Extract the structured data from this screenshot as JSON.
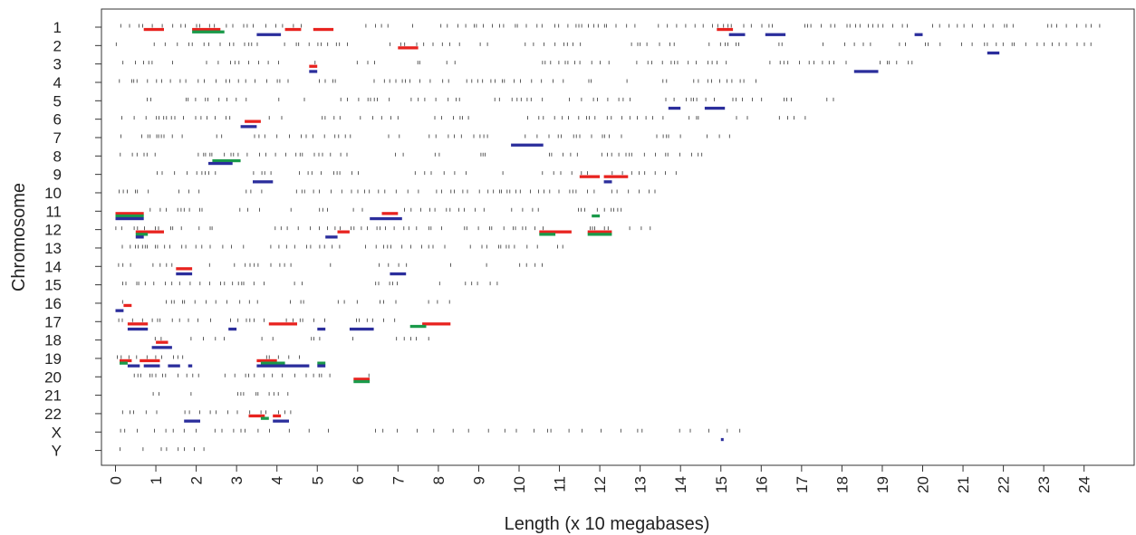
{
  "chart_data": {
    "type": "scatter",
    "title": "",
    "xlabel": "Length (x 10 megabases)",
    "ylabel": "Chromosome",
    "xlim": [
      -0.4,
      25.6
    ],
    "x_ticks": [
      0,
      1,
      2,
      3,
      4,
      5,
      6,
      7,
      8,
      9,
      10,
      11,
      12,
      13,
      14,
      15,
      16,
      17,
      18,
      19,
      20,
      21,
      22,
      23,
      24
    ],
    "chromosomes": [
      "1",
      "2",
      "3",
      "4",
      "5",
      "6",
      "7",
      "8",
      "9",
      "10",
      "11",
      "12",
      "13",
      "14",
      "15",
      "16",
      "17",
      "18",
      "19",
      "20",
      "21",
      "22",
      "X",
      "Y"
    ],
    "chromosome_lengths": [
      24.5,
      24.3,
      19.8,
      19.1,
      18.1,
      17.1,
      15.9,
      14.6,
      14.1,
      13.5,
      13.4,
      13.3,
      11.4,
      10.6,
      10.0,
      9.0,
      8.1,
      7.8,
      5.9,
      6.3,
      4.7,
      5.0,
      15.5,
      2.6
    ],
    "colors": {
      "ticks": "#333333",
      "red": "#e8231f",
      "green": "#1a9a4a",
      "blue": "#2b2e9c"
    },
    "segments": [
      {
        "chr": "1",
        "start": 0.7,
        "end": 1.2,
        "color": "red"
      },
      {
        "chr": "1",
        "start": 1.9,
        "end": 2.6,
        "color": "red"
      },
      {
        "chr": "1",
        "start": 1.9,
        "end": 2.7,
        "color": "green"
      },
      {
        "chr": "1",
        "start": 3.5,
        "end": 4.1,
        "color": "blue"
      },
      {
        "chr": "1",
        "start": 4.2,
        "end": 4.6,
        "color": "red"
      },
      {
        "chr": "1",
        "start": 4.9,
        "end": 5.4,
        "color": "red"
      },
      {
        "chr": "1",
        "start": 14.9,
        "end": 15.3,
        "color": "red"
      },
      {
        "chr": "1",
        "start": 15.2,
        "end": 15.6,
        "color": "blue"
      },
      {
        "chr": "1",
        "start": 16.1,
        "end": 16.6,
        "color": "blue"
      },
      {
        "chr": "1",
        "start": 19.8,
        "end": 20.0,
        "color": "blue"
      },
      {
        "chr": "2",
        "start": 7.0,
        "end": 7.5,
        "color": "red"
      },
      {
        "chr": "2",
        "start": 21.6,
        "end": 21.9,
        "color": "blue"
      },
      {
        "chr": "3",
        "start": 4.8,
        "end": 5.0,
        "color": "red"
      },
      {
        "chr": "3",
        "start": 4.8,
        "end": 5.0,
        "color": "blue"
      },
      {
        "chr": "3",
        "start": 18.3,
        "end": 18.9,
        "color": "blue"
      },
      {
        "chr": "5",
        "start": 13.7,
        "end": 14.0,
        "color": "blue"
      },
      {
        "chr": "5",
        "start": 14.6,
        "end": 15.1,
        "color": "blue"
      },
      {
        "chr": "6",
        "start": 3.2,
        "end": 3.6,
        "color": "red"
      },
      {
        "chr": "6",
        "start": 3.1,
        "end": 3.5,
        "color": "blue"
      },
      {
        "chr": "7",
        "start": 9.8,
        "end": 10.6,
        "color": "blue"
      },
      {
        "chr": "8",
        "start": 2.4,
        "end": 3.1,
        "color": "green"
      },
      {
        "chr": "8",
        "start": 2.3,
        "end": 2.9,
        "color": "blue"
      },
      {
        "chr": "9",
        "start": 11.5,
        "end": 12.0,
        "color": "red"
      },
      {
        "chr": "9",
        "start": 12.1,
        "end": 12.7,
        "color": "red"
      },
      {
        "chr": "9",
        "start": 3.4,
        "end": 3.9,
        "color": "blue"
      },
      {
        "chr": "9",
        "start": 12.1,
        "end": 12.3,
        "color": "blue"
      },
      {
        "chr": "11",
        "start": 0.0,
        "end": 0.7,
        "color": "red"
      },
      {
        "chr": "11",
        "start": 0.0,
        "end": 0.7,
        "color": "green"
      },
      {
        "chr": "11",
        "start": 0.0,
        "end": 0.7,
        "color": "blue"
      },
      {
        "chr": "11",
        "start": 6.6,
        "end": 7.0,
        "color": "red"
      },
      {
        "chr": "11",
        "start": 6.3,
        "end": 7.1,
        "color": "blue"
      },
      {
        "chr": "11",
        "start": 11.8,
        "end": 12.0,
        "color": "green"
      },
      {
        "chr": "12",
        "start": 0.5,
        "end": 1.2,
        "color": "red"
      },
      {
        "chr": "12",
        "start": 0.5,
        "end": 0.8,
        "color": "green"
      },
      {
        "chr": "12",
        "start": 0.5,
        "end": 0.7,
        "color": "blue"
      },
      {
        "chr": "12",
        "start": 5.5,
        "end": 5.8,
        "color": "red"
      },
      {
        "chr": "12",
        "start": 5.2,
        "end": 5.5,
        "color": "blue"
      },
      {
        "chr": "12",
        "start": 10.5,
        "end": 11.0,
        "color": "red"
      },
      {
        "chr": "12",
        "start": 10.5,
        "end": 10.9,
        "color": "green"
      },
      {
        "chr": "12",
        "start": 11.0,
        "end": 11.3,
        "color": "red"
      },
      {
        "chr": "12",
        "start": 11.7,
        "end": 12.3,
        "color": "red"
      },
      {
        "chr": "12",
        "start": 11.7,
        "end": 12.3,
        "color": "green"
      },
      {
        "chr": "14",
        "start": 1.5,
        "end": 1.9,
        "color": "red"
      },
      {
        "chr": "14",
        "start": 1.5,
        "end": 1.9,
        "color": "blue"
      },
      {
        "chr": "14",
        "start": 6.8,
        "end": 7.2,
        "color": "blue"
      },
      {
        "chr": "16",
        "start": 0.2,
        "end": 0.4,
        "color": "red"
      },
      {
        "chr": "16",
        "start": 0.0,
        "end": 0.2,
        "color": "blue"
      },
      {
        "chr": "17",
        "start": 0.3,
        "end": 0.8,
        "color": "red"
      },
      {
        "chr": "17",
        "start": 0.3,
        "end": 0.8,
        "color": "blue"
      },
      {
        "chr": "17",
        "start": 3.8,
        "end": 4.5,
        "color": "red"
      },
      {
        "chr": "17",
        "start": 5.0,
        "end": 5.2,
        "color": "blue"
      },
      {
        "chr": "17",
        "start": 5.8,
        "end": 6.4,
        "color": "blue"
      },
      {
        "chr": "17",
        "start": 7.6,
        "end": 8.3,
        "color": "red"
      },
      {
        "chr": "17",
        "start": 7.3,
        "end": 7.7,
        "color": "green"
      },
      {
        "chr": "17",
        "start": 2.8,
        "end": 3.0,
        "color": "blue"
      },
      {
        "chr": "18",
        "start": 1.0,
        "end": 1.3,
        "color": "red"
      },
      {
        "chr": "18",
        "start": 0.9,
        "end": 1.4,
        "color": "blue"
      },
      {
        "chr": "19",
        "start": 0.1,
        "end": 0.4,
        "color": "red"
      },
      {
        "chr": "19",
        "start": 0.1,
        "end": 0.3,
        "color": "green"
      },
      {
        "chr": "19",
        "start": 0.3,
        "end": 0.6,
        "color": "blue"
      },
      {
        "chr": "19",
        "start": 0.6,
        "end": 1.1,
        "color": "red"
      },
      {
        "chr": "19",
        "start": 0.7,
        "end": 1.1,
        "color": "blue"
      },
      {
        "chr": "19",
        "start": 1.3,
        "end": 1.6,
        "color": "blue"
      },
      {
        "chr": "19",
        "start": 1.8,
        "end": 1.9,
        "color": "blue"
      },
      {
        "chr": "19",
        "start": 3.5,
        "end": 4.0,
        "color": "red"
      },
      {
        "chr": "19",
        "start": 3.6,
        "end": 4.2,
        "color": "green"
      },
      {
        "chr": "19",
        "start": 3.5,
        "end": 4.5,
        "color": "blue"
      },
      {
        "chr": "19",
        "start": 4.5,
        "end": 4.8,
        "color": "blue"
      },
      {
        "chr": "19",
        "start": 5.0,
        "end": 5.2,
        "color": "green"
      },
      {
        "chr": "19",
        "start": 5.0,
        "end": 5.2,
        "color": "blue"
      },
      {
        "chr": "20",
        "start": 5.9,
        "end": 6.3,
        "color": "red"
      },
      {
        "chr": "20",
        "start": 5.9,
        "end": 6.3,
        "color": "green"
      },
      {
        "chr": "22",
        "start": 3.3,
        "end": 3.7,
        "color": "red"
      },
      {
        "chr": "22",
        "start": 3.6,
        "end": 3.8,
        "color": "green"
      },
      {
        "chr": "22",
        "start": 3.9,
        "end": 4.1,
        "color": "red"
      },
      {
        "chr": "22",
        "start": 1.7,
        "end": 2.1,
        "color": "blue"
      },
      {
        "chr": "22",
        "start": 3.9,
        "end": 4.3,
        "color": "blue"
      },
      {
        "chr": "X",
        "start": 15.0,
        "end": 15.05,
        "color": "blue"
      }
    ]
  }
}
